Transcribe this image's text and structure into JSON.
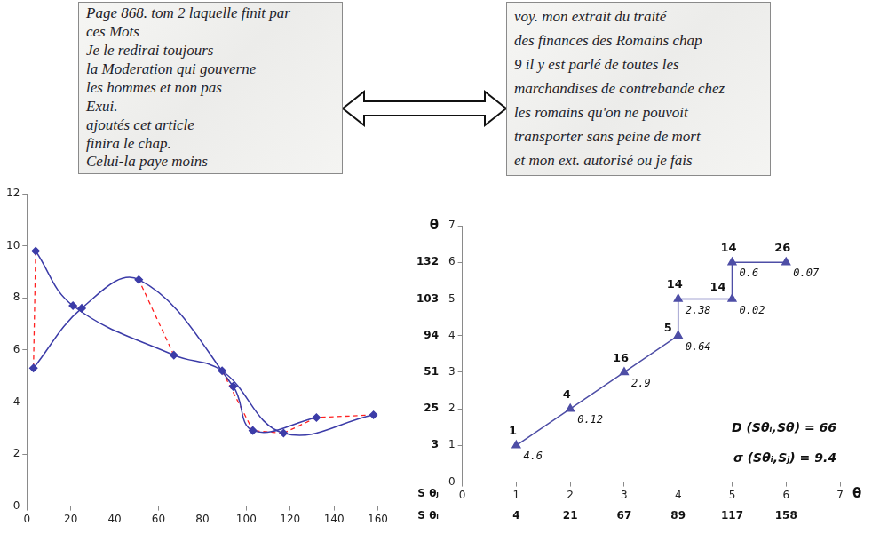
{
  "images": [
    {
      "lines": [
        "Page 868. tom 2 laquelle finit par",
        "ces Mots",
        "Je le redirai toujours",
        "la Moderation qui gouverne",
        "les hommes et non pas",
        "Exui.",
        "ajoutés cet article",
        "finira le chap.",
        "Celui-la paye moins"
      ]
    },
    {
      "lines": [
        "voy. mon extrait du traité",
        "des finances des Romains chap",
        "9 il y est parlé de toutes les",
        "marchandises de contrebande chez",
        "les romains qu'on ne pouvoit",
        "transporter sans peine de mort",
        "et mon ext. autorisé ou je fais"
      ]
    }
  ],
  "chart_data": [
    {
      "type": "line",
      "xlim": [
        0,
        160
      ],
      "xticks": [
        0,
        20,
        40,
        60,
        80,
        100,
        120,
        140,
        160
      ],
      "ylim": [
        0,
        12
      ],
      "yticks": [
        0,
        2,
        4,
        6,
        8,
        10,
        12
      ],
      "grid": false,
      "series": [
        {
          "color": "#3c3ca8",
          "marker": "diamond",
          "line_style": "smooth",
          "x": [
            4,
            21,
            67,
            89,
            117,
            158
          ],
          "values": [
            9.8,
            7.7,
            5.8,
            5.2,
            2.8,
            3.5
          ]
        },
        {
          "color": "#3c3ca8",
          "marker": "diamond",
          "line_style": "smooth",
          "x": [
            3,
            25,
            51,
            94,
            103,
            132
          ],
          "values": [
            5.3,
            7.6,
            8.7,
            4.6,
            2.9,
            3.4
          ]
        }
      ],
      "matches": {
        "pairs": [
          [
            1,
            1
          ],
          [
            2,
            2
          ],
          [
            3,
            3
          ],
          [
            4,
            4
          ],
          [
            4,
            5
          ],
          [
            5,
            5
          ],
          [
            5,
            6
          ],
          [
            6,
            6
          ]
        ],
        "color": "#ff2020",
        "line_style": "dashed"
      }
    },
    {
      "type": "line",
      "x_label": "θ",
      "y_label": "θ",
      "xlim": [
        0,
        7
      ],
      "xticks": [
        0,
        1,
        2,
        3,
        4,
        5,
        6,
        7
      ],
      "ylim": [
        0,
        7
      ],
      "yticks": [
        0,
        1,
        2,
        3,
        4,
        5,
        6,
        7
      ],
      "grid": false,
      "series": [
        {
          "color": "#4e4ea6",
          "marker": "triangle",
          "line_style": "solid",
          "x": [
            1,
            2,
            3,
            4,
            4,
            5,
            5,
            6
          ],
          "values": [
            1,
            2,
            3,
            4,
            5,
            5,
            6,
            6
          ],
          "counts": [
            1,
            4,
            16,
            5,
            14,
            14,
            14,
            26
          ],
          "costs": [
            4.6,
            0.12,
            2.9,
            0.64,
            2.38,
            0.02,
            0.6,
            0.07
          ]
        }
      ],
      "x_secondary": {
        "label": "S θᵢ",
        "at": [
          1,
          2,
          3,
          4,
          5,
          6
        ],
        "values": [
          4,
          21,
          67,
          89,
          117,
          158
        ]
      },
      "y_secondary": {
        "label": "S θⱼ",
        "at": [
          1,
          2,
          3,
          4,
          5,
          6
        ],
        "values": [
          3,
          25,
          51,
          94,
          103,
          132
        ]
      },
      "annotations": [
        "D (Sθᵢ,Sθ) = 66",
        "σ (Sθᵢ,Sⱼ) = 9.4"
      ]
    }
  ]
}
